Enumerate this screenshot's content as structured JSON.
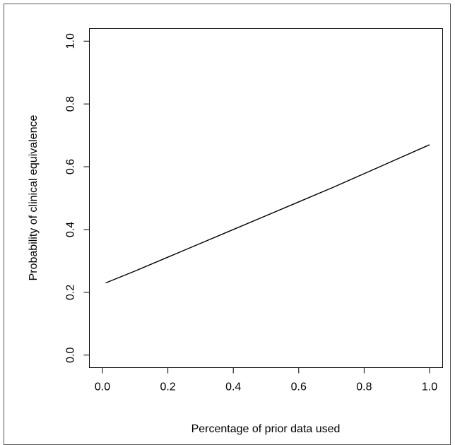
{
  "chart_data": {
    "type": "line",
    "title": "",
    "xlabel": "Percentage of prior data used",
    "ylabel": "Probability of clinical equivalence",
    "xlim": [
      -0.04,
      1.04
    ],
    "ylim": [
      -0.04,
      1.04
    ],
    "x_ticks": [
      "0.0",
      "0.2",
      "0.4",
      "0.6",
      "0.8",
      "1.0"
    ],
    "y_ticks": [
      "0.0",
      "0.2",
      "0.4",
      "0.6",
      "0.8",
      "1.0"
    ],
    "grid": false,
    "legend": "none",
    "line_color": "#000000",
    "series": [
      {
        "x": [
          0.01,
          0.1,
          0.2,
          0.3,
          0.4,
          0.5,
          0.6,
          0.7,
          0.8,
          0.9,
          1.0
        ],
        "y": [
          0.23,
          0.268,
          0.312,
          0.356,
          0.4,
          0.444,
          0.488,
          0.532,
          0.578,
          0.624,
          0.67
        ]
      }
    ]
  }
}
